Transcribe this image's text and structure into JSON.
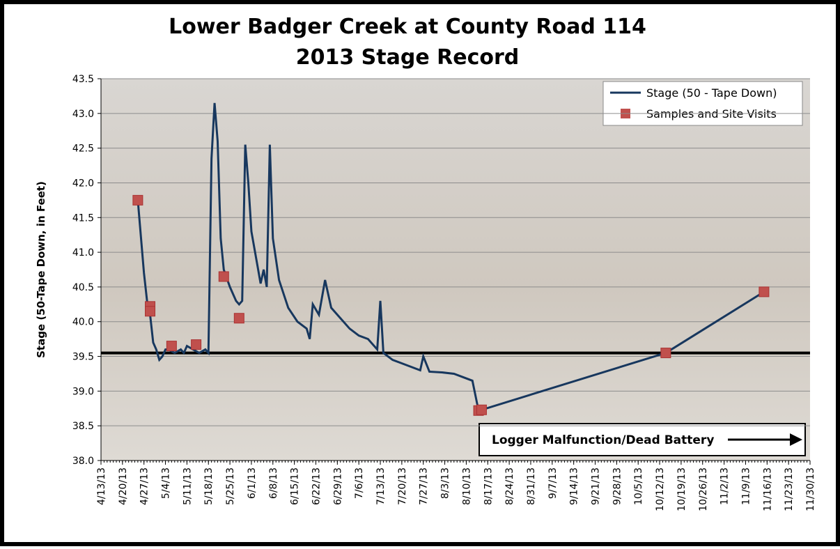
{
  "chart_data": {
    "type": "line",
    "title": "Lower Badger Creek at County Road 114",
    "subtitle": "2013 Stage Record",
    "y_label": "Stage (50-Tape Down, in Feet)",
    "ylim": [
      38,
      43.5
    ],
    "yticks": [
      {
        "value": 38,
        "label": "38.0"
      },
      38.5,
      {
        "value": 39,
        "label": "39.0"
      },
      39.5,
      {
        "value": 40,
        "label": "40.0"
      },
      40.5,
      {
        "value": 41,
        "label": "41.0"
      },
      41.5,
      {
        "value": 42,
        "label": "42.0"
      },
      42.5,
      {
        "value": 43,
        "label": "43.0"
      },
      43.5
    ],
    "xlim": [
      "4/13/13",
      "11/30/13"
    ],
    "xticks": [
      "4/13/13",
      "4/20/13",
      "4/27/13",
      "5/4/13",
      "5/11/13",
      "5/18/13",
      "5/25/13",
      "6/1/13",
      "6/8/13",
      "6/15/13",
      "6/22/13",
      "6/29/13",
      "7/6/13",
      "7/13/13",
      "7/20/13",
      "7/27/13",
      "8/3/13",
      "8/10/13",
      "8/17/13",
      "8/24/13",
      "8/31/13",
      "9/7/13",
      "9/14/13",
      "9/21/13",
      "9/28/13",
      "10/5/13",
      "10/12/13",
      "10/19/13",
      "10/26/13",
      "11/2/13",
      "11/9/13",
      "11/16/13",
      "11/23/13",
      "11/30/13"
    ],
    "grid": true,
    "reference_line": 39.55,
    "annotation": "Logger Malfunction/Dead Battery",
    "legend": "upper right",
    "series": [
      {
        "name": "Stage (50 - Tape Down)",
        "color": "#17375e",
        "type": "line",
        "x": [
          "4/25/13",
          "4/27/13",
          "4/28/13",
          "4/29/13",
          "4/30/13",
          "5/1/13",
          "5/2/13",
          "5/3/13",
          "5/4/13",
          "5/5/13",
          "5/7/13",
          "5/9/13",
          "5/10/13",
          "5/11/13",
          "5/13/13",
          "5/15/13",
          "5/17/13",
          "5/18/13",
          "5/19/13",
          "5/20/13",
          "5/21/13",
          "5/22/13",
          "5/23/13",
          "5/25/13",
          "5/27/13",
          "5/28/13",
          "5/29/13",
          "5/30/13",
          "5/31/13",
          "6/1/13",
          "6/3/13",
          "6/4/13",
          "6/5/13",
          "6/6/13",
          "6/7/13",
          "6/8/13",
          "6/10/13",
          "6/13/13",
          "6/16/13",
          "6/19/13",
          "6/20/13",
          "6/21/13",
          "6/23/13",
          "6/25/13",
          "6/27/13",
          "6/30/13",
          "7/3/13",
          "7/6/13",
          "7/9/13",
          "7/12/13",
          "7/13/13",
          "7/14/13",
          "7/17/13",
          "7/20/13",
          "7/23/13",
          "7/26/13",
          "7/27/13",
          "7/29/13",
          "8/2/13",
          "8/6/13",
          "8/9/13",
          "8/12/13",
          "8/14/13",
          "8/15/13",
          "10/14/13",
          "11/15/13"
        ],
        "values": [
          41.75,
          40.7,
          40.3,
          40.1,
          39.7,
          39.6,
          39.45,
          39.5,
          39.6,
          39.6,
          39.55,
          39.6,
          39.55,
          39.65,
          39.6,
          39.55,
          39.6,
          39.55,
          42.35,
          43.15,
          42.6,
          41.2,
          40.75,
          40.5,
          40.3,
          40.25,
          40.3,
          42.55,
          42.0,
          41.3,
          40.8,
          40.55,
          40.75,
          40.5,
          42.55,
          41.2,
          40.6,
          40.2,
          40.0,
          39.9,
          39.75,
          40.25,
          40.1,
          40.6,
          40.2,
          40.05,
          39.9,
          39.8,
          39.75,
          39.6,
          40.3,
          39.55,
          39.45,
          39.4,
          39.35,
          39.3,
          39.5,
          39.28,
          39.27,
          39.25,
          39.2,
          39.15,
          38.72,
          38.73,
          39.55,
          40.43
        ]
      },
      {
        "name": "Samples and Site Visits",
        "color": "#c0504d",
        "type": "scatter",
        "x": [
          "4/25/13",
          "4/29/13",
          "4/29/13",
          "5/6/13",
          "5/14/13",
          "5/23/13",
          "5/28/13",
          "8/14/13",
          "8/15/13",
          "10/14/13",
          "11/15/13"
        ],
        "values": [
          41.75,
          40.22,
          40.15,
          39.65,
          39.67,
          40.65,
          40.05,
          38.72,
          38.73,
          39.55,
          40.43
        ]
      }
    ]
  }
}
